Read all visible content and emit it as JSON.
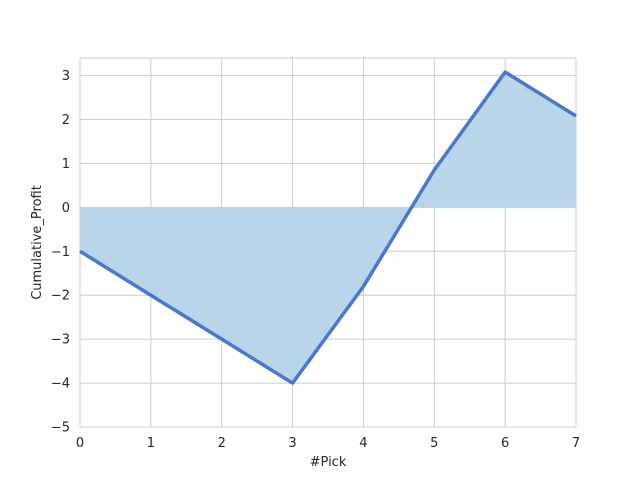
{
  "chart_data": {
    "type": "area",
    "title": "",
    "xlabel": "#Pick",
    "ylabel": "Cumulative_Profit",
    "xlim": [
      0,
      7
    ],
    "ylim": [
      -5,
      3.4
    ],
    "xticks": [
      0,
      1,
      2,
      3,
      4,
      5,
      6,
      7
    ],
    "yticks": [
      -5,
      -4,
      -3,
      -2,
      -1,
      0,
      1,
      2,
      3
    ],
    "xtick_labels": [
      "0",
      "1",
      "2",
      "3",
      "4",
      "5",
      "6",
      "7"
    ],
    "ytick_labels": [
      "−5",
      "−4",
      "−3",
      "−2",
      "−1",
      "0",
      "1",
      "2",
      "3"
    ],
    "grid": true,
    "fill_baseline": 0,
    "series": [
      {
        "x": [
          0,
          1,
          2,
          3,
          4,
          5,
          6,
          7
        ],
        "y": [
          -1,
          -2,
          -3,
          -4,
          -1.8,
          0.85,
          3.08,
          2.08
        ],
        "line_color": "#4878cf",
        "fill_color": "#b9d5ea"
      }
    ]
  }
}
